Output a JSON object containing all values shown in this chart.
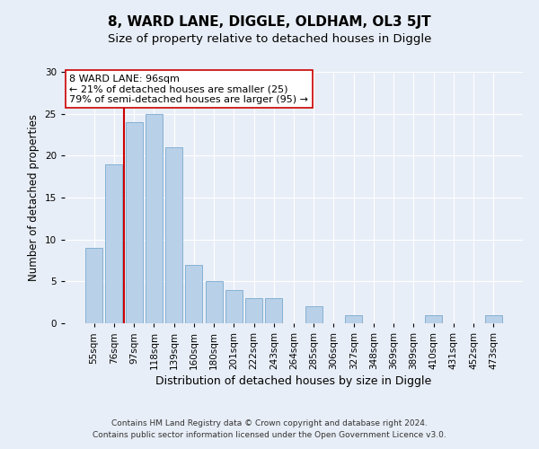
{
  "title": "8, WARD LANE, DIGGLE, OLDHAM, OL3 5JT",
  "subtitle": "Size of property relative to detached houses in Diggle",
  "xlabel": "Distribution of detached houses by size in Diggle",
  "ylabel": "Number of detached properties",
  "categories": [
    "55sqm",
    "76sqm",
    "97sqm",
    "118sqm",
    "139sqm",
    "160sqm",
    "180sqm",
    "201sqm",
    "222sqm",
    "243sqm",
    "264sqm",
    "285sqm",
    "306sqm",
    "327sqm",
    "348sqm",
    "369sqm",
    "389sqm",
    "410sqm",
    "431sqm",
    "452sqm",
    "473sqm"
  ],
  "values": [
    9,
    19,
    24,
    25,
    21,
    7,
    5,
    4,
    3,
    3,
    0,
    2,
    0,
    1,
    0,
    0,
    0,
    1,
    0,
    0,
    1
  ],
  "bar_color": "#b8d0e8",
  "bar_edge_color": "#7aaacf",
  "vline_color": "#cc0000",
  "annotation_text": "8 WARD LANE: 96sqm\n← 21% of detached houses are smaller (25)\n79% of semi-detached houses are larger (95) →",
  "annotation_box_color": "#ffffff",
  "annotation_box_edge": "#cc0000",
  "ylim": [
    0,
    30
  ],
  "yticks": [
    0,
    5,
    10,
    15,
    20,
    25,
    30
  ],
  "footnote1": "Contains HM Land Registry data © Crown copyright and database right 2024.",
  "footnote2": "Contains public sector information licensed under the Open Government Licence v3.0.",
  "bg_color": "#e8eef7",
  "plot_bg_color": "#e8eef7",
  "title_fontsize": 11,
  "subtitle_fontsize": 9.5,
  "label_fontsize": 8.5,
  "tick_fontsize": 7.5,
  "footnote_fontsize": 6.5,
  "annotation_fontsize": 8
}
